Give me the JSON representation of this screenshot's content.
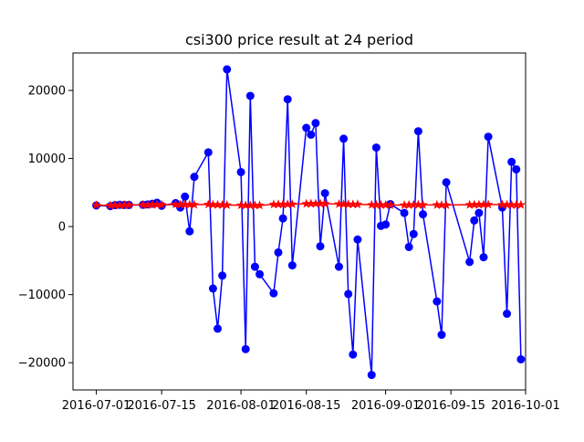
{
  "chart_data": {
    "type": "line",
    "title": "csi300 price result at 24 period",
    "xlabel": "",
    "ylabel": "",
    "x_axis_type": "date",
    "xlim": [
      "2016-06-26",
      "2016-10-01"
    ],
    "ylim": [
      -24000,
      25500
    ],
    "x_ticks": [
      "2016-07-01",
      "2016-07-15",
      "2016-08-01",
      "2016-08-15",
      "2016-09-01",
      "2016-09-15",
      "2016-10-01"
    ],
    "y_ticks": [
      -20000,
      -10000,
      0,
      10000,
      20000
    ],
    "grid": false,
    "legend": "none",
    "series": [
      {
        "color": "#0000ff",
        "marker": "circle",
        "x": [
          "2016-07-01",
          "2016-07-04",
          "2016-07-05",
          "2016-07-06",
          "2016-07-07",
          "2016-07-08",
          "2016-07-11",
          "2016-07-12",
          "2016-07-13",
          "2016-07-14",
          "2016-07-15",
          "2016-07-18",
          "2016-07-19",
          "2016-07-20",
          "2016-07-21",
          "2016-07-22",
          "2016-07-25",
          "2016-07-26",
          "2016-07-27",
          "2016-07-28",
          "2016-07-29",
          "2016-08-01",
          "2016-08-02",
          "2016-08-03",
          "2016-08-04",
          "2016-08-05",
          "2016-08-08",
          "2016-08-09",
          "2016-08-10",
          "2016-08-11",
          "2016-08-12",
          "2016-08-15",
          "2016-08-16",
          "2016-08-17",
          "2016-08-18",
          "2016-08-19",
          "2016-08-22",
          "2016-08-23",
          "2016-08-24",
          "2016-08-25",
          "2016-08-26",
          "2016-08-29",
          "2016-08-30",
          "2016-08-31",
          "2016-09-01",
          "2016-09-02",
          "2016-09-05",
          "2016-09-06",
          "2016-09-07",
          "2016-09-08",
          "2016-09-09",
          "2016-09-12",
          "2016-09-13",
          "2016-09-14",
          "2016-09-19",
          "2016-09-20",
          "2016-09-21",
          "2016-09-22",
          "2016-09-23",
          "2016-09-26",
          "2016-09-27",
          "2016-09-28",
          "2016-09-29",
          "2016-09-30"
        ],
        "values": [
          3100,
          3000,
          3150,
          3200,
          3180,
          3180,
          3200,
          3250,
          3350,
          3500,
          3050,
          3450,
          2800,
          4400,
          -700,
          7300,
          10900,
          -9100,
          -15000,
          -7200,
          23100,
          8000,
          -18000,
          19200,
          -5900,
          -7000,
          -9800,
          -3800,
          1200,
          18700,
          -5700,
          14500,
          13500,
          15200,
          -2900,
          4900,
          -5900,
          12900,
          -9900,
          -18800,
          -1900,
          -21800,
          11600,
          100,
          300,
          3300,
          2000,
          -3000,
          -1100,
          14000,
          1800,
          -11000,
          -15900,
          6500,
          -5200,
          900,
          2000,
          -4500,
          13200,
          2800,
          -12800,
          9500,
          8400,
          -19500
        ]
      },
      {
        "color": "#ff0000",
        "marker": "star",
        "x": [
          "2016-07-01",
          "2016-07-04",
          "2016-07-05",
          "2016-07-06",
          "2016-07-07",
          "2016-07-08",
          "2016-07-11",
          "2016-07-12",
          "2016-07-13",
          "2016-07-14",
          "2016-07-15",
          "2016-07-18",
          "2016-07-19",
          "2016-07-20",
          "2016-07-21",
          "2016-07-22",
          "2016-07-25",
          "2016-07-26",
          "2016-07-27",
          "2016-07-28",
          "2016-07-29",
          "2016-08-01",
          "2016-08-02",
          "2016-08-03",
          "2016-08-04",
          "2016-08-05",
          "2016-08-08",
          "2016-08-09",
          "2016-08-10",
          "2016-08-11",
          "2016-08-12",
          "2016-08-15",
          "2016-08-16",
          "2016-08-17",
          "2016-08-18",
          "2016-08-19",
          "2016-08-22",
          "2016-08-23",
          "2016-08-24",
          "2016-08-25",
          "2016-08-26",
          "2016-08-29",
          "2016-08-30",
          "2016-08-31",
          "2016-09-01",
          "2016-09-02",
          "2016-09-05",
          "2016-09-06",
          "2016-09-07",
          "2016-09-08",
          "2016-09-09",
          "2016-09-12",
          "2016-09-13",
          "2016-09-14",
          "2016-09-19",
          "2016-09-20",
          "2016-09-21",
          "2016-09-22",
          "2016-09-23",
          "2016-09-26",
          "2016-09-27",
          "2016-09-28",
          "2016-09-29",
          "2016-09-30"
        ],
        "values": [
          3150,
          3100,
          3130,
          3140,
          3160,
          3170,
          3180,
          3200,
          3210,
          3220,
          3200,
          3250,
          3240,
          3230,
          3220,
          3210,
          3250,
          3220,
          3200,
          3180,
          3160,
          3140,
          3120,
          3100,
          3110,
          3120,
          3250,
          3260,
          3270,
          3280,
          3290,
          3350,
          3360,
          3370,
          3380,
          3360,
          3300,
          3290,
          3280,
          3270,
          3260,
          3200,
          3190,
          3180,
          3170,
          3160,
          3150,
          3180,
          3200,
          3210,
          3190,
          3180,
          3170,
          3160,
          3200,
          3210,
          3220,
          3230,
          3240,
          3210,
          3200,
          3190,
          3180,
          3190
        ]
      }
    ]
  }
}
